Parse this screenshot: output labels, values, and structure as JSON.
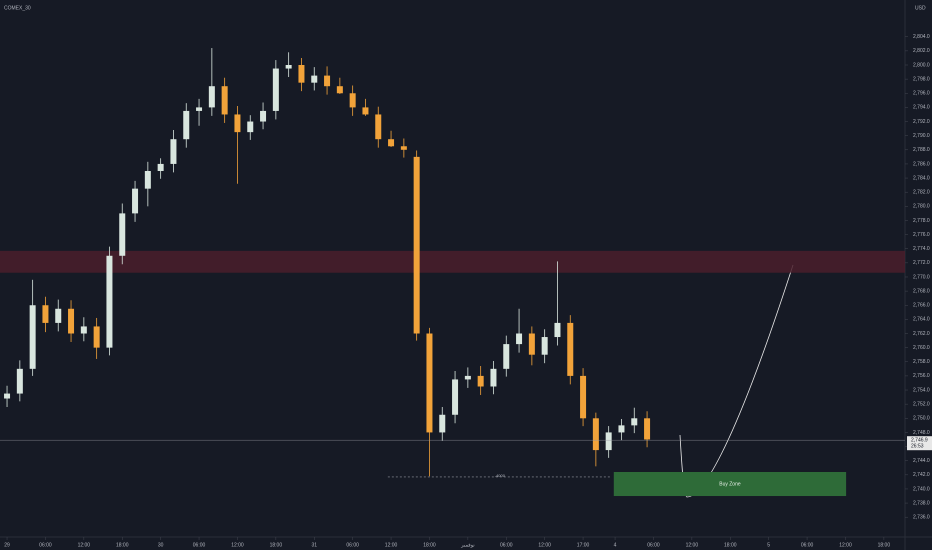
{
  "chart_data": {
    "type": "candlestick",
    "title": "COMEX_30",
    "currency": "USD",
    "up_color": "#d9e6df",
    "down_color": "#f2a33a",
    "background": "#161a25",
    "xlim": [
      -1.1,
      140.3
    ],
    "ylim": [
      2733.2,
      2809.2
    ],
    "xticks": [
      {
        "value": 0,
        "label": "29"
      },
      {
        "value": 6,
        "label": "06:00"
      },
      {
        "value": 12,
        "label": "12:00"
      },
      {
        "value": 18,
        "label": "18:00"
      },
      {
        "value": 24,
        "label": "30"
      },
      {
        "value": 30,
        "label": "06:00"
      },
      {
        "value": 36,
        "label": "12:00"
      },
      {
        "value": 42,
        "label": "18:00"
      },
      {
        "value": 48,
        "label": "31"
      },
      {
        "value": 54,
        "label": "06:00"
      },
      {
        "value": 60,
        "label": "12:00"
      },
      {
        "value": 66,
        "label": "18:00"
      },
      {
        "value": 72,
        "label": "نوفمبر"
      },
      {
        "value": 78,
        "label": "06:00"
      },
      {
        "value": 84,
        "label": "12:00"
      },
      {
        "value": 90,
        "label": "17:00"
      },
      {
        "value": 95,
        "label": "4"
      },
      {
        "value": 101,
        "label": "06:00"
      },
      {
        "value": 107,
        "label": "12:00"
      },
      {
        "value": 113,
        "label": "18:00"
      },
      {
        "value": 119,
        "label": "5"
      },
      {
        "value": 125,
        "label": "06:00"
      },
      {
        "value": 131,
        "label": "12:00"
      },
      {
        "value": 137,
        "label": "18:00"
      }
    ],
    "yticks": [
      {
        "value": 2736,
        "label": "2,736.0"
      },
      {
        "value": 2738,
        "label": "2,738.0"
      },
      {
        "value": 2740,
        "label": "2,740.0"
      },
      {
        "value": 2742,
        "label": "2,742.0"
      },
      {
        "value": 2744,
        "label": "2,744.0"
      },
      {
        "value": 2746,
        "label": "2,746.0"
      },
      {
        "value": 2748,
        "label": "2,748.0"
      },
      {
        "value": 2750,
        "label": "2,750.0"
      },
      {
        "value": 2752,
        "label": "2,752.0"
      },
      {
        "value": 2754,
        "label": "2,754.0"
      },
      {
        "value": 2756,
        "label": "2,756.0"
      },
      {
        "value": 2758,
        "label": "2,758.0"
      },
      {
        "value": 2760,
        "label": "2,760.0"
      },
      {
        "value": 2762,
        "label": "2,762.0"
      },
      {
        "value": 2764,
        "label": "2,764.0"
      },
      {
        "value": 2766,
        "label": "2,766.0"
      },
      {
        "value": 2768,
        "label": "2,768.0"
      },
      {
        "value": 2770,
        "label": "2,770.0"
      },
      {
        "value": 2772,
        "label": "2,772.0"
      },
      {
        "value": 2774,
        "label": "2,774.0"
      },
      {
        "value": 2776,
        "label": "2,776.0"
      },
      {
        "value": 2778,
        "label": "2,778.0"
      },
      {
        "value": 2780,
        "label": "2,780.0"
      },
      {
        "value": 2782,
        "label": "2,782.0"
      },
      {
        "value": 2784,
        "label": "2,784.0"
      },
      {
        "value": 2786,
        "label": "2,786.0"
      },
      {
        "value": 2788,
        "label": "2,788.0"
      },
      {
        "value": 2790,
        "label": "2,790.0"
      },
      {
        "value": 2792,
        "label": "2,792.0"
      },
      {
        "value": 2794,
        "label": "2,794.0"
      },
      {
        "value": 2796,
        "label": "2,796.0"
      },
      {
        "value": 2798,
        "label": "2,798.0"
      },
      {
        "value": 2800,
        "label": "2,800.0"
      },
      {
        "value": 2802,
        "label": "2,802.0"
      },
      {
        "value": 2804,
        "label": "2,804.0"
      }
    ],
    "x": [
      0,
      2,
      4,
      6,
      8,
      10,
      12,
      14,
      16,
      18,
      20,
      22,
      24,
      26,
      28,
      30,
      32,
      34,
      36,
      38,
      40,
      42,
      44,
      46,
      48,
      50,
      52,
      54,
      56,
      58,
      60,
      62,
      64,
      66,
      68,
      70,
      72,
      74,
      76,
      78,
      80,
      82,
      84,
      86,
      88,
      90,
      92,
      94,
      96,
      98,
      100
    ],
    "open": [
      2752.8,
      2753.5,
      2757.0,
      2766.0,
      2763.5,
      2765.5,
      2762.0,
      2763.0,
      2760.0,
      2773.0,
      2779.0,
      2782.5,
      2785.0,
      2786.0,
      2789.5,
      2793.5,
      2794.0,
      2797.0,
      2793.0,
      2790.5,
      2792.0,
      2793.5,
      2799.5,
      2800.0,
      2797.5,
      2798.5,
      2797.0,
      2796.0,
      2794.0,
      2793.0,
      2789.5,
      2788.5,
      2787.0,
      2762.0,
      2748.0,
      2750.5,
      2755.5,
      2756.0,
      2754.5,
      2757.0,
      2760.5,
      2762.0,
      2759.0,
      2761.5,
      2763.5,
      2756.0,
      2750.0,
      2745.5,
      2748.0,
      2749.0,
      2750.0
    ],
    "high": [
      2754.6,
      2758.2,
      2769.6,
      2767.2,
      2766.8,
      2766.7,
      2764.3,
      2764.2,
      2774.3,
      2780.4,
      2783.6,
      2786.3,
      2786.8,
      2790.8,
      2794.6,
      2795.2,
      2802.4,
      2798.2,
      2794.2,
      2792.9,
      2794.7,
      2800.7,
      2801.8,
      2801.0,
      2799.7,
      2799.8,
      2798.2,
      2797.1,
      2795.2,
      2794.1,
      2790.7,
      2789.6,
      2787.9,
      2762.8,
      2751.6,
      2756.7,
      2757.2,
      2757.4,
      2758.1,
      2761.7,
      2765.5,
      2763.0,
      2762.6,
      2772.2,
      2764.6,
      2757.1,
      2750.8,
      2748.9,
      2749.9,
      2751.5,
      2751.0
    ],
    "low": [
      2751.6,
      2752.4,
      2756.0,
      2762.2,
      2762.3,
      2760.8,
      2760.9,
      2758.4,
      2758.9,
      2771.8,
      2777.8,
      2780.0,
      2783.9,
      2784.8,
      2788.3,
      2791.4,
      2792.8,
      2791.8,
      2783.2,
      2789.4,
      2790.9,
      2792.3,
      2798.3,
      2796.3,
      2796.4,
      2795.8,
      2795.9,
      2792.8,
      2792.8,
      2788.3,
      2788.4,
      2786.9,
      2761.0,
      2741.8,
      2746.8,
      2749.3,
      2754.3,
      2753.3,
      2753.4,
      2755.9,
      2759.3,
      2757.5,
      2757.8,
      2760.3,
      2754.8,
      2748.9,
      2743.2,
      2744.4,
      2746.9,
      2747.9,
      2745.9
    ],
    "close": [
      2753.5,
      2757.0,
      2766.0,
      2763.5,
      2765.5,
      2762.0,
      2763.0,
      2760.0,
      2773.0,
      2779.0,
      2782.5,
      2785.0,
      2786.0,
      2789.5,
      2793.5,
      2794.0,
      2797.0,
      2793.0,
      2790.5,
      2792.0,
      2793.5,
      2799.5,
      2800.0,
      2797.5,
      2798.5,
      2797.0,
      2796.0,
      2794.0,
      2793.0,
      2789.5,
      2788.5,
      2788.0,
      2762.0,
      2748.0,
      2750.5,
      2755.5,
      2756.0,
      2754.5,
      2757.0,
      2760.5,
      2762.0,
      2759.0,
      2761.5,
      2763.5,
      2756.0,
      2750.0,
      2745.5,
      2748.0,
      2749.0,
      2750.0,
      2747.0
    ],
    "last_price": {
      "value": 2746.9,
      "label": "2,746.9",
      "countdown": "26:53"
    },
    "zones": [
      {
        "y_from": 2770.6,
        "y_to": 2773.7,
        "color": "#4a1f2b"
      },
      {
        "label": "Buy Zone",
        "x_from": 94.8,
        "x_to": 131.1,
        "y_from": 2739.0,
        "y_to": 2742.4,
        "color": "#2e6b38"
      }
    ],
    "level": {
      "value": 2741.7,
      "x_from": 59.5,
      "x_to": 94.5,
      "label": "-4000"
    }
  }
}
